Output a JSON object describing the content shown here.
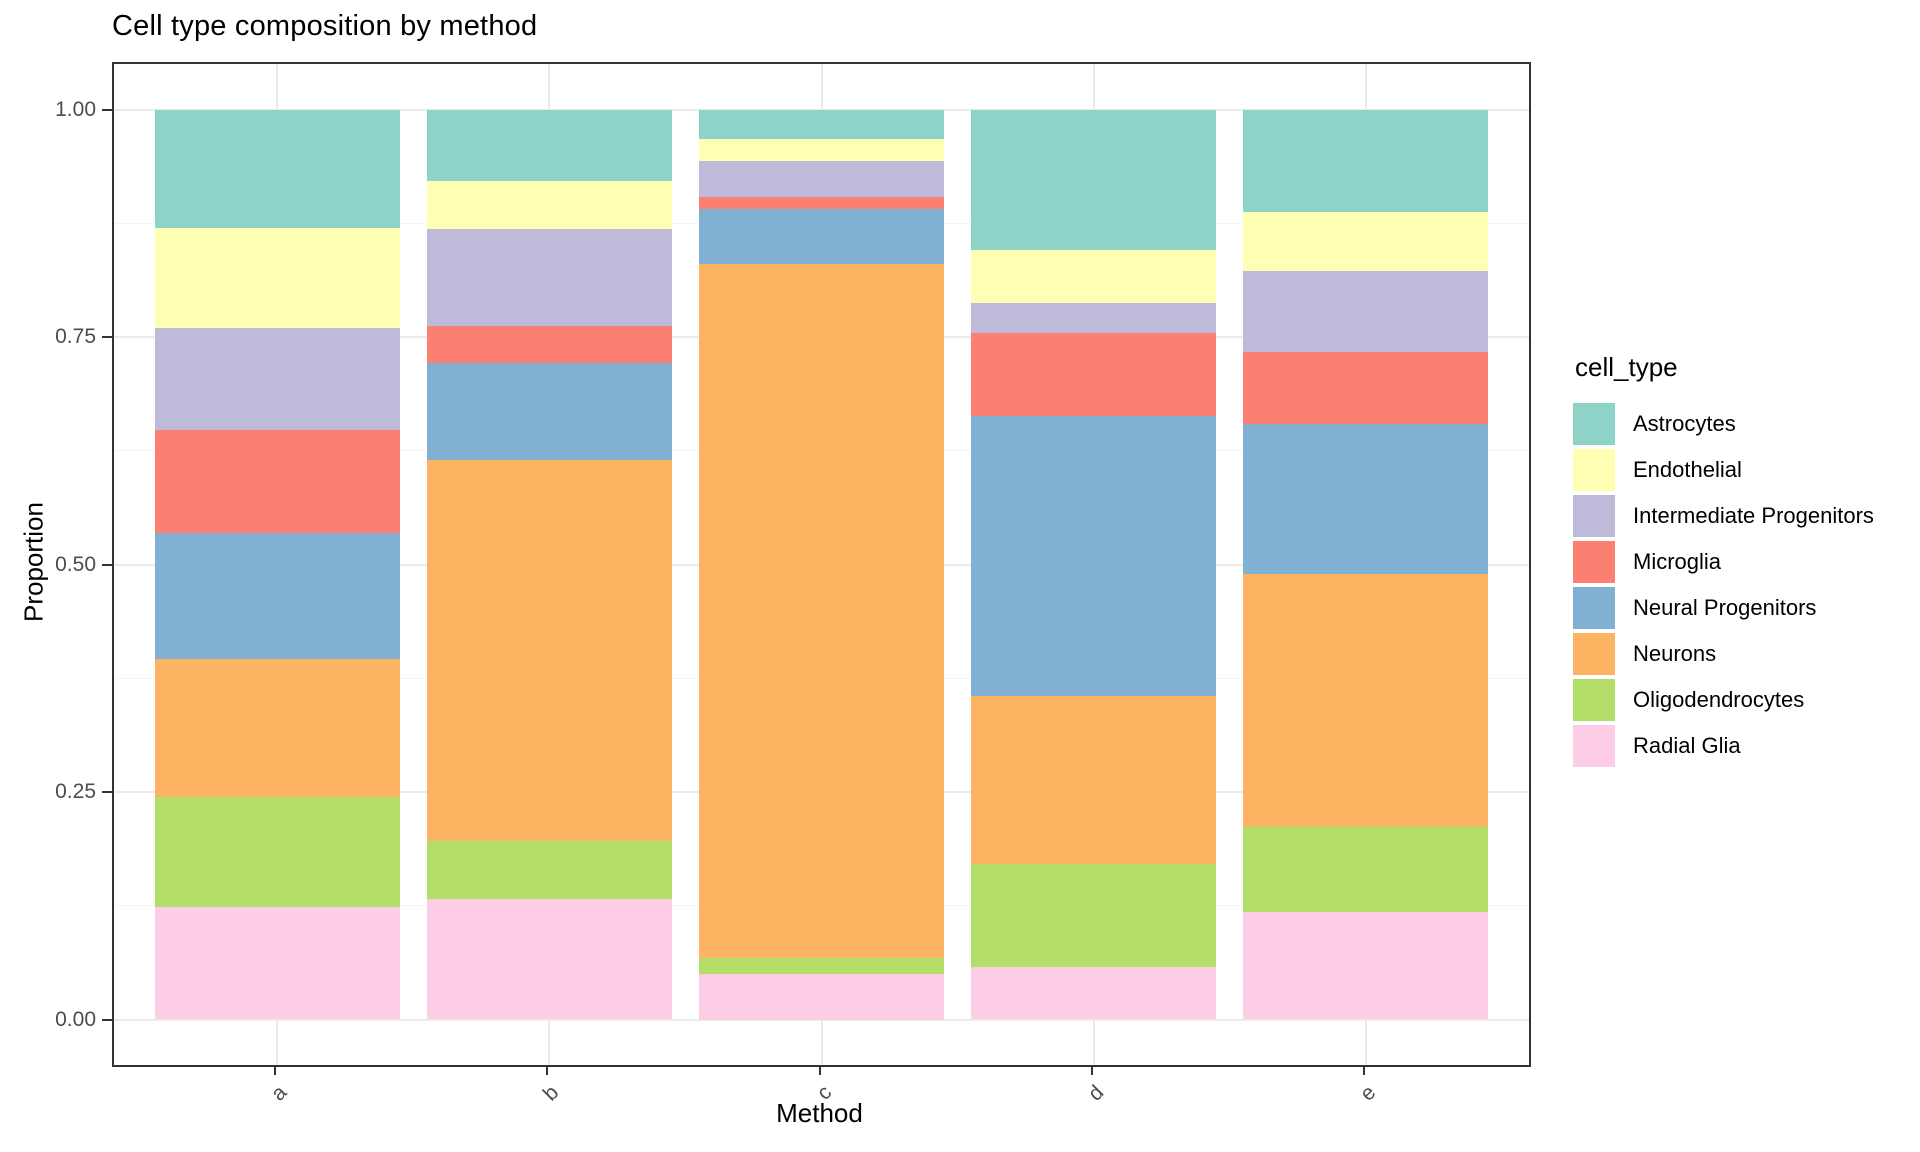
{
  "chart_data": {
    "type": "bar",
    "stacked": true,
    "title": "Cell type composition by method",
    "x_axis": {
      "label": "Method",
      "categories": [
        "a",
        "b",
        "c",
        "d",
        "e"
      ],
      "tick_label_angle_deg": 45
    },
    "y_axis": {
      "label": "Proportion",
      "range": [
        0,
        1
      ],
      "ticks": [
        {
          "value": 0.0,
          "label": "0.00"
        },
        {
          "value": 0.25,
          "label": "0.25"
        },
        {
          "value": 0.5,
          "label": "0.50"
        },
        {
          "value": 0.75,
          "label": "0.75"
        },
        {
          "value": 1.0,
          "label": "1.00"
        }
      ],
      "minor_ticks": [
        0.125,
        0.375,
        0.625,
        0.875
      ]
    },
    "legend": {
      "title": "cell_type",
      "position": "right"
    },
    "stack_order_bottom_to_top": [
      "Radial Glia",
      "Oligodendrocytes",
      "Neurons",
      "Neural Progenitors",
      "Microglia",
      "Intermediate Progenitors",
      "Endothelial",
      "Astrocytes"
    ],
    "series": [
      {
        "name": "Astrocytes",
        "color": "#8DD3C7",
        "values": [
          0.13,
          0.079,
          0.032,
          0.154,
          0.113
        ]
      },
      {
        "name": "Endothelial",
        "color": "#FFFFB3",
        "values": [
          0.11,
          0.052,
          0.025,
          0.059,
          0.065
        ]
      },
      {
        "name": "Intermediate Progenitors",
        "color": "#BEBADA",
        "values": [
          0.112,
          0.107,
          0.039,
          0.033,
          0.089
        ]
      },
      {
        "name": "Microglia",
        "color": "#FB8072",
        "values": [
          0.113,
          0.041,
          0.013,
          0.091,
          0.079
        ]
      },
      {
        "name": "Neural Progenitors",
        "color": "#80B1D3",
        "values": [
          0.139,
          0.106,
          0.061,
          0.308,
          0.164
        ]
      },
      {
        "name": "Neurons",
        "color": "#FDB462",
        "values": [
          0.151,
          0.419,
          0.762,
          0.184,
          0.278
        ]
      },
      {
        "name": "Oligodendrocytes",
        "color": "#B3DE69",
        "values": [
          0.121,
          0.064,
          0.018,
          0.113,
          0.094
        ]
      },
      {
        "name": "Radial Glia",
        "color": "#FCCDE5",
        "values": [
          0.124,
          0.132,
          0.05,
          0.058,
          0.118
        ]
      }
    ],
    "theme": {
      "panel_background": "#ffffff",
      "panel_border": "#333333",
      "grid_major": "#ebebeb",
      "grid_minor": "#f4f4f4",
      "tick_mark": "#333333",
      "tick_text": "#4d4d4d",
      "title_text": "#000000"
    }
  }
}
